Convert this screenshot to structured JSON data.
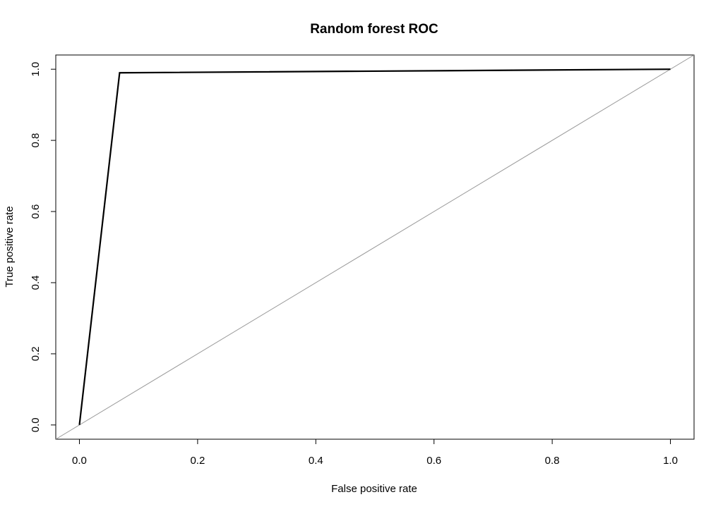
{
  "chart_data": {
    "type": "line",
    "title": "Random forest ROC",
    "xlabel": "False positive rate",
    "ylabel": "True positive rate",
    "xlim": [
      -0.04,
      1.04
    ],
    "ylim": [
      -0.04,
      1.04
    ],
    "x_ticks": [
      "0.0",
      "0.2",
      "0.4",
      "0.6",
      "0.8",
      "1.0"
    ],
    "y_ticks": [
      "0.0",
      "0.2",
      "0.4",
      "0.6",
      "0.8",
      "1.0"
    ],
    "grid": false,
    "series": [
      {
        "x": [
          0.0,
          0.068,
          1.0
        ],
        "y": [
          0.0,
          0.99,
          1.0
        ],
        "color": "#000000"
      }
    ],
    "reference_line": {
      "intercept": 0,
      "slope": 1,
      "color": "#999999"
    }
  }
}
